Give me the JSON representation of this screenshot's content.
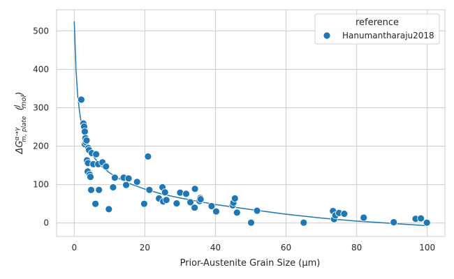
{
  "chart_data": {
    "type": "scatter",
    "xlabel": "Prior-Austenite Grain Size (μm)",
    "ylabel": "ΔG m,plate α→γ (J/mol)",
    "xlim": [
      -5,
      105
    ],
    "ylim": [
      -35,
      555
    ],
    "x_ticks": [
      0,
      20,
      40,
      60,
      80,
      100
    ],
    "y_ticks": [
      0,
      100,
      200,
      300,
      400,
      500
    ],
    "grid": true,
    "legend": {
      "title": "reference",
      "placement": "top-right",
      "entries": [
        "Hanumantharaju2018"
      ]
    },
    "colors": {
      "series": "#1f77b4",
      "grid": "#cccccc",
      "spine": "#cccccc"
    },
    "series": [
      {
        "name": "Hanumantharaju2018",
        "kind": "scatter",
        "x": [
          2.0,
          2.6,
          2.8,
          3.0,
          3.0,
          3.2,
          3.3,
          3.5,
          3.6,
          3.8,
          3.9,
          4.0,
          4.2,
          4.4,
          4.6,
          4.8,
          5.0,
          5.4,
          6.0,
          6.2,
          6.8,
          7.0,
          8.0,
          9.0,
          9.8,
          11.0,
          11.5,
          14.0,
          14.7,
          15.4,
          17.8,
          19.8,
          20.9,
          21.3,
          24.0,
          25.0,
          25.2,
          25.7,
          26.1,
          29.0,
          30.0,
          31.7,
          32.9,
          34.1,
          34.2,
          35.5,
          35.7,
          35.8,
          38.9,
          40.2,
          44.9,
          45.1,
          45.5,
          46.1,
          50.1,
          51.8,
          65.0,
          73.3,
          73.6,
          74.0,
          75.0,
          76.5,
          82.0,
          90.5,
          96.7,
          98.2,
          99.9
        ],
        "y": [
          321,
          259,
          251,
          238,
          205,
          221,
          210,
          215,
          163,
          134,
          156,
          195,
          190,
          126,
          120,
          86,
          182,
          153,
          50,
          179,
          153,
          86,
          158,
          147,
          36,
          93,
          118,
          118,
          99,
          116,
          107,
          50,
          173,
          86,
          64,
          93,
          56,
          80,
          60,
          51,
          79,
          76,
          54,
          40,
          89,
          57,
          65,
          62,
          44,
          30,
          46,
          53,
          64,
          27,
          1,
          32,
          1,
          31,
          10,
          20,
          26,
          24,
          14,
          2,
          11,
          12,
          1
        ]
      },
      {
        "name": "",
        "kind": "fit-line",
        "x": [
          0.0,
          0.5,
          1.0,
          1.5,
          2.0,
          2.5,
          3.0,
          3.5,
          4.0,
          5.0,
          6.0,
          8.0,
          10.0,
          12.0,
          15.0,
          20.0,
          25.0,
          30.0,
          40.0,
          50.0,
          60.0,
          70.0,
          80.0,
          90.0,
          100.0
        ],
        "y": [
          525,
          400,
          330,
          290,
          260,
          238,
          222,
          209,
          198,
          180,
          166,
          145,
          131,
          119,
          105,
          88,
          75,
          65,
          48,
          35,
          23,
          13,
          5,
          -1,
          -7
        ]
      }
    ]
  }
}
